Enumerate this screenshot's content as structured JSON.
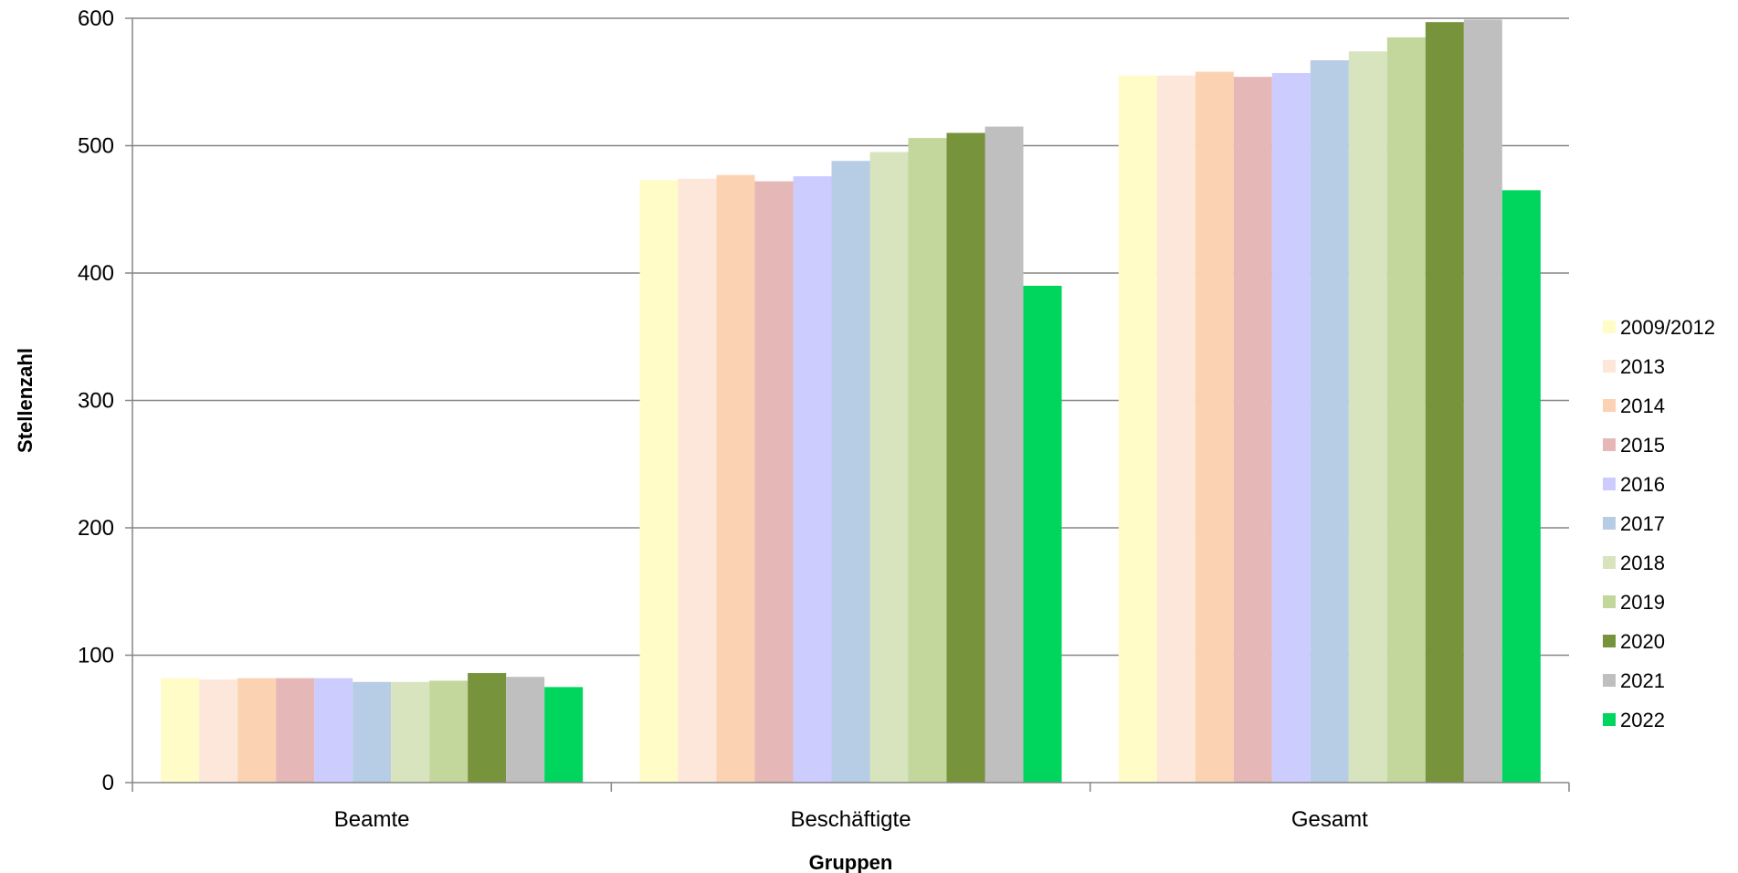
{
  "chart_data": {
    "type": "bar",
    "categories": [
      "Beamte",
      "Beschäftigte",
      "Gesamt"
    ],
    "xlabel": "Gruppen",
    "ylabel": "Stellenzahl",
    "ylim": [
      0,
      600
    ],
    "yticks": [
      0,
      100,
      200,
      300,
      400,
      500,
      600
    ],
    "grid": true,
    "legend_position": "right",
    "series": [
      {
        "name": "2009/2012",
        "color": "#FFFCC8",
        "values": [
          82,
          473,
          555
        ]
      },
      {
        "name": "2013",
        "color": "#FDE7DA",
        "values": [
          81,
          474,
          555
        ]
      },
      {
        "name": "2014",
        "color": "#FBD3B3",
        "values": [
          82,
          477,
          558
        ]
      },
      {
        "name": "2015",
        "color": "#E6B7B7",
        "values": [
          82,
          472,
          554
        ]
      },
      {
        "name": "2016",
        "color": "#CCCCFF",
        "values": [
          82,
          476,
          557
        ]
      },
      {
        "name": "2017",
        "color": "#B7CCE5",
        "values": [
          79,
          488,
          567
        ]
      },
      {
        "name": "2018",
        "color": "#D7E4BE",
        "values": [
          79,
          495,
          574
        ]
      },
      {
        "name": "2019",
        "color": "#C3D69B",
        "values": [
          80,
          506,
          585
        ]
      },
      {
        "name": "2020",
        "color": "#77933C",
        "values": [
          86,
          510,
          597
        ]
      },
      {
        "name": "2021",
        "color": "#BFBFBF",
        "values": [
          83,
          515,
          599
        ]
      },
      {
        "name": "2022",
        "color": "#00D65E",
        "values": [
          75,
          390,
          465
        ]
      }
    ]
  }
}
